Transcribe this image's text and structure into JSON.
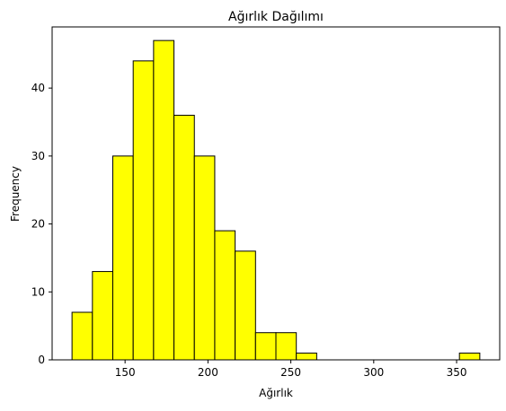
{
  "chart_data": {
    "type": "bar",
    "title": "Ağırlık Dağılımı",
    "xlabel": "Ağırlık",
    "ylabel": "Frequency",
    "xlim": [
      106,
      376
    ],
    "ylim": [
      0,
      49
    ],
    "xticks": [
      150,
      200,
      250,
      300,
      350
    ],
    "yticks": [
      0,
      10,
      20,
      30,
      40
    ],
    "bin_edges": [
      118,
      130.3,
      142.6,
      154.9,
      167.2,
      179.5,
      191.8,
      204.1,
      216.4,
      228.7,
      241,
      253.3,
      265.6,
      277.9,
      290.2,
      302.5,
      314.8,
      327.1,
      339.4,
      351.7,
      364
    ],
    "counts": [
      7,
      13,
      30,
      44,
      47,
      36,
      30,
      19,
      16,
      4,
      4,
      1,
      0,
      0,
      0,
      0,
      0,
      0,
      0,
      1
    ],
    "bar_color": "#ffff00",
    "edge_color": "#000000",
    "grid": false
  }
}
